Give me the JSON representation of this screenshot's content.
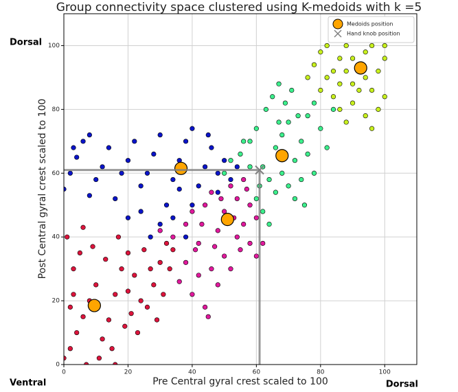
{
  "chart_data": {
    "type": "scatter",
    "title": "Group  connectivity space clustered using K-medoids with k =5",
    "x_label": "Pre Central gyral crest  scaled to 100",
    "y_label": "Post Central gyral crest  scaled to 100",
    "annotations": [
      "Dorsal",
      "Ventral",
      "Dorsal"
    ],
    "xlim": [
      0,
      110
    ],
    "ylim": [
      0,
      110
    ],
    "xticks": [
      0,
      20,
      40,
      60,
      80,
      100
    ],
    "yticks": [
      0,
      20,
      40,
      60,
      80,
      100
    ],
    "grid": true,
    "legend": "upper right",
    "series": [
      {
        "color": "#dc143c",
        "x": [
          0,
          2,
          4,
          6,
          8,
          10,
          3,
          5,
          1,
          12,
          14,
          16,
          18,
          20,
          22,
          24,
          26,
          28,
          30,
          32,
          34,
          15,
          11,
          7,
          19,
          21,
          13,
          9,
          17,
          23,
          25,
          29,
          31,
          6,
          3,
          27,
          33,
          2,
          16,
          20
        ],
        "values": [
          2,
          5,
          10,
          15,
          20,
          25,
          30,
          35,
          40,
          8,
          14,
          22,
          30,
          35,
          28,
          20,
          18,
          25,
          32,
          38,
          36,
          5,
          2,
          0,
          12,
          16,
          33,
          37,
          40,
          10,
          36,
          14,
          22,
          43,
          22,
          30,
          30,
          18,
          0,
          23
        ]
      },
      {
        "color": "#0a14c8",
        "x": [
          0,
          2,
          4,
          6,
          8,
          10,
          12,
          14,
          16,
          18,
          20,
          22,
          24,
          26,
          28,
          30,
          32,
          34,
          36,
          38,
          40,
          42,
          44,
          46,
          48,
          50,
          52,
          54,
          30,
          34,
          40,
          38,
          20,
          24,
          8,
          3,
          45,
          48,
          36,
          27
        ],
        "values": [
          55,
          60,
          65,
          70,
          72,
          58,
          62,
          68,
          52,
          60,
          64,
          70,
          56,
          60,
          66,
          72,
          50,
          58,
          64,
          70,
          74,
          56,
          62,
          68,
          60,
          64,
          58,
          62,
          44,
          46,
          50,
          40,
          46,
          48,
          53,
          68,
          72,
          54,
          55,
          40
        ]
      },
      {
        "color": "#e0189c",
        "x": [
          30,
          34,
          38,
          40,
          42,
          44,
          46,
          48,
          50,
          52,
          54,
          56,
          58,
          60,
          55,
          50,
          46,
          42,
          40,
          44,
          48,
          52,
          58,
          60,
          45,
          38,
          36,
          56,
          54,
          49,
          43,
          41,
          47,
          53,
          57,
          62
        ],
        "values": [
          42,
          40,
          44,
          48,
          38,
          50,
          54,
          42,
          48,
          56,
          52,
          44,
          50,
          46,
          36,
          34,
          30,
          28,
          22,
          18,
          25,
          30,
          38,
          34,
          15,
          32,
          26,
          58,
          40,
          52,
          44,
          36,
          37,
          46,
          55,
          38
        ]
      },
      {
        "color": "#3cef8c",
        "x": [
          50,
          52,
          55,
          58,
          60,
          62,
          64,
          66,
          68,
          70,
          72,
          74,
          76,
          78,
          80,
          82,
          84,
          60,
          62,
          64,
          66,
          68,
          70,
          72,
          74,
          76,
          65,
          67,
          69,
          63,
          71,
          73,
          58,
          56,
          75,
          78,
          61,
          67
        ],
        "values": [
          60,
          64,
          66,
          70,
          74,
          62,
          58,
          68,
          72,
          76,
          64,
          70,
          78,
          82,
          74,
          68,
          80,
          52,
          48,
          44,
          54,
          60,
          56,
          52,
          58,
          66,
          84,
          88,
          82,
          80,
          86,
          78,
          62,
          70,
          50,
          60,
          56,
          76
        ]
      },
      {
        "color": "#c8f01e",
        "x": [
          76,
          78,
          80,
          82,
          84,
          86,
          88,
          90,
          92,
          94,
          96,
          98,
          100,
          80,
          84,
          86,
          88,
          90,
          92,
          94,
          96,
          98,
          100,
          82,
          86,
          90,
          94,
          100,
          88,
          96
        ],
        "values": [
          90,
          94,
          98,
          100,
          92,
          96,
          100,
          88,
          94,
          98,
          100,
          92,
          96,
          86,
          84,
          80,
          76,
          82,
          86,
          78,
          74,
          80,
          84,
          90,
          88,
          96,
          90,
          100,
          92,
          86
        ]
      },
      {
        "name": "Medoids position",
        "color": "#ffa500",
        "marker": "o",
        "x": [
          9.5,
          36.5,
          51,
          68,
          92.5
        ],
        "values": [
          18.5,
          61.5,
          45.5,
          65.5,
          93
        ]
      },
      {
        "name": "Hand knob position",
        "color": "#808080",
        "marker": "x",
        "x": [
          61
        ],
        "values": [
          61
        ]
      }
    ]
  }
}
